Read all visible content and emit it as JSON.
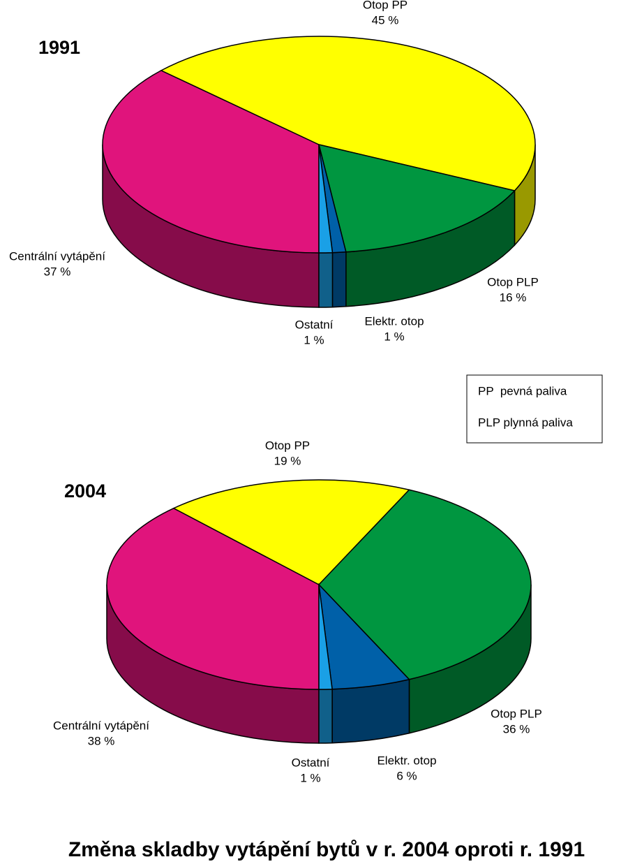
{
  "title": "Změna skladby vytápění bytů v r. 2004 oproti r. 1991",
  "legend_notes": [
    "PP  pevná paliva",
    "PLP plynná paliva"
  ],
  "chart_data": [
    {
      "type": "pie",
      "title": "1991",
      "categories": [
        "Centrální vytápění",
        "Otop PP",
        "Otop PLP",
        "Elektr. otop",
        "Ostatní"
      ],
      "values": [
        37,
        45,
        16,
        1,
        1
      ],
      "value_labels": [
        "37 %",
        "45 %",
        "16 %",
        "1 %",
        "1 %"
      ],
      "colors": [
        "#e0147c",
        "#ffff00",
        "#009640",
        "#0060a8",
        "#1aa0e6"
      ]
    },
    {
      "type": "pie",
      "title": "2004",
      "categories": [
        "Centrální vytápění",
        "Otop PP",
        "Otop PLP",
        "Elektr. otop",
        "Ostatní"
      ],
      "values": [
        38,
        19,
        36,
        6,
        1
      ],
      "value_labels": [
        "38 %",
        "19 %",
        "36 %",
        "6 %",
        "1 %"
      ],
      "colors": [
        "#e0147c",
        "#ffff00",
        "#009640",
        "#0060a8",
        "#1aa0e6"
      ]
    }
  ]
}
